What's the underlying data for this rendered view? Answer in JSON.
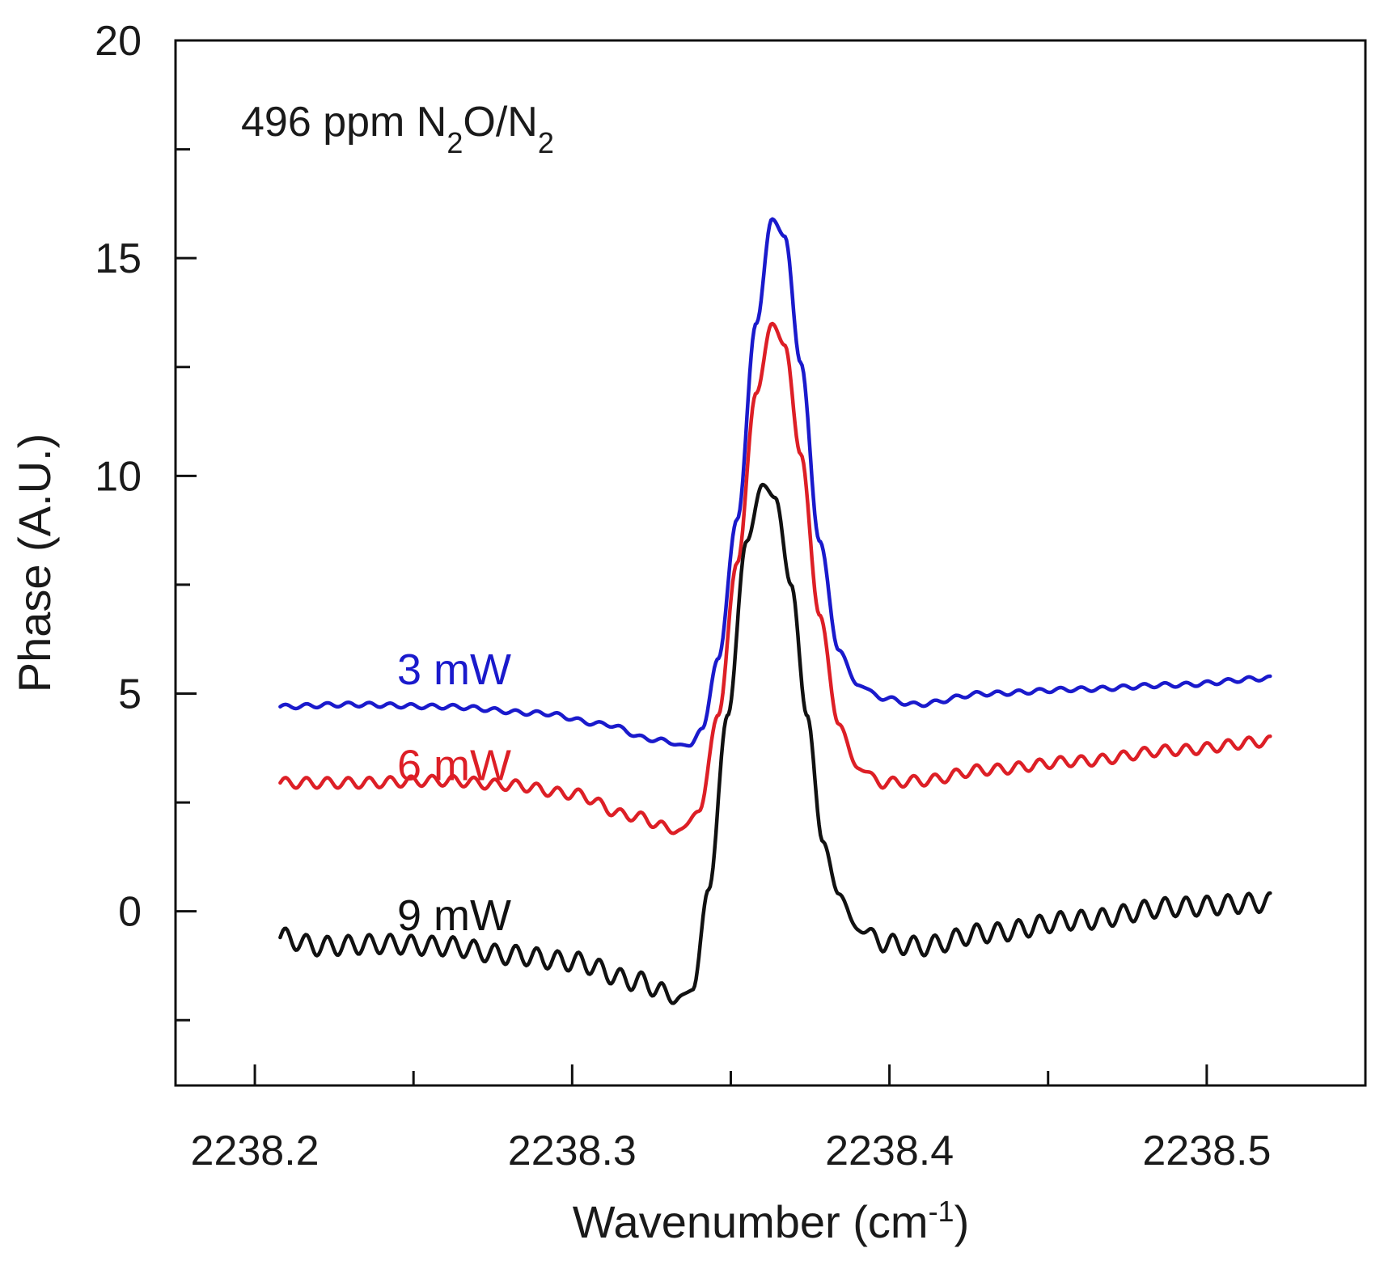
{
  "chart_data": {
    "type": "line",
    "title": "",
    "annotation": {
      "parts": [
        {
          "text": "496 ppm N",
          "sub": false
        },
        {
          "text": "2",
          "sub": true
        },
        {
          "text": "O/N",
          "sub": false
        },
        {
          "text": "2",
          "sub": true
        }
      ]
    },
    "xlabel": {
      "base": "Wavenumber (cm",
      "sup": "-1",
      "tail": ")"
    },
    "ylabel": "Phase (A.U.)",
    "xlim": [
      2238.175,
      2238.55
    ],
    "ylim": [
      -4,
      20
    ],
    "x_ticks": [
      {
        "value": 2238.2,
        "label": "2238.2"
      },
      {
        "value": 2238.25,
        "label": ""
      },
      {
        "value": 2238.3,
        "label": "2238.3"
      },
      {
        "value": 2238.35,
        "label": ""
      },
      {
        "value": 2238.4,
        "label": "2238.4"
      },
      {
        "value": 2238.45,
        "label": ""
      },
      {
        "value": 2238.5,
        "label": "2238.5"
      }
    ],
    "y_ticks": [
      {
        "value": -2.5,
        "label": ""
      },
      {
        "value": 0,
        "label": "0"
      },
      {
        "value": 2.5,
        "label": ""
      },
      {
        "value": 5,
        "label": "5"
      },
      {
        "value": 7.5,
        "label": ""
      },
      {
        "value": 10,
        "label": "10"
      },
      {
        "value": 12.5,
        "label": ""
      },
      {
        "value": 15,
        "label": "15"
      },
      {
        "value": 17.5,
        "label": ""
      },
      {
        "value": 20,
        "label": "20"
      }
    ],
    "series": [
      {
        "name": "3 mW",
        "color": "#1a1acc",
        "label_pos": {
          "x": 2238.22,
          "y": 5.55
        },
        "ripple": 0.05,
        "points": [
          [
            2238.208,
            4.7
          ],
          [
            2238.23,
            4.75
          ],
          [
            2238.26,
            4.7
          ],
          [
            2238.29,
            4.55
          ],
          [
            2238.31,
            4.3
          ],
          [
            2238.325,
            3.95
          ],
          [
            2238.337,
            3.8
          ],
          [
            2238.341,
            4.2
          ],
          [
            2238.346,
            5.8
          ],
          [
            2238.352,
            9.0
          ],
          [
            2238.358,
            13.5
          ],
          [
            2238.363,
            15.9
          ],
          [
            2238.367,
            15.5
          ],
          [
            2238.372,
            12.6
          ],
          [
            2238.378,
            8.5
          ],
          [
            2238.384,
            6.0
          ],
          [
            2238.39,
            5.2
          ],
          [
            2238.398,
            4.9
          ],
          [
            2238.408,
            4.75
          ],
          [
            2238.43,
            5.0
          ],
          [
            2238.46,
            5.1
          ],
          [
            2238.49,
            5.2
          ],
          [
            2238.52,
            5.35
          ]
        ]
      },
      {
        "name": "6 mW",
        "color": "#dd1f26",
        "label_pos": {
          "x": 2238.22,
          "y": 3.35
        },
        "ripple": 0.12,
        "points": [
          [
            2238.208,
            2.95
          ],
          [
            2238.23,
            2.95
          ],
          [
            2238.26,
            3.0
          ],
          [
            2238.28,
            2.9
          ],
          [
            2238.3,
            2.7
          ],
          [
            2238.318,
            2.2
          ],
          [
            2238.334,
            1.85
          ],
          [
            2238.34,
            2.3
          ],
          [
            2238.346,
            4.5
          ],
          [
            2238.352,
            8.0
          ],
          [
            2238.358,
            11.9
          ],
          [
            2238.363,
            13.5
          ],
          [
            2238.367,
            13.0
          ],
          [
            2238.372,
            10.5
          ],
          [
            2238.378,
            6.8
          ],
          [
            2238.384,
            4.3
          ],
          [
            2238.39,
            3.3
          ],
          [
            2238.398,
            2.95
          ],
          [
            2238.41,
            3.0
          ],
          [
            2238.43,
            3.25
          ],
          [
            2238.46,
            3.45
          ],
          [
            2238.49,
            3.7
          ],
          [
            2238.52,
            3.9
          ]
        ]
      },
      {
        "name": "9 mW",
        "color": "#111111",
        "label_pos": {
          "x": 2238.22,
          "y": -0.1
        },
        "ripple": 0.22,
        "points": [
          [
            2238.208,
            -0.6
          ],
          [
            2238.22,
            -0.8
          ],
          [
            2238.24,
            -0.75
          ],
          [
            2238.26,
            -0.8
          ],
          [
            2238.28,
            -1.0
          ],
          [
            2238.3,
            -1.15
          ],
          [
            2238.32,
            -1.6
          ],
          [
            2238.334,
            -2.0
          ],
          [
            2238.338,
            -1.8
          ],
          [
            2238.343,
            0.5
          ],
          [
            2238.349,
            4.5
          ],
          [
            2238.355,
            8.5
          ],
          [
            2238.36,
            9.8
          ],
          [
            2238.364,
            9.5
          ],
          [
            2238.369,
            7.5
          ],
          [
            2238.374,
            4.5
          ],
          [
            2238.379,
            1.6
          ],
          [
            2238.384,
            0.4
          ],
          [
            2238.39,
            -0.4
          ],
          [
            2238.4,
            -0.75
          ],
          [
            2238.41,
            -0.8
          ],
          [
            2238.43,
            -0.5
          ],
          [
            2238.46,
            -0.2
          ],
          [
            2238.49,
            0.1
          ],
          [
            2238.52,
            0.2
          ]
        ]
      }
    ]
  }
}
